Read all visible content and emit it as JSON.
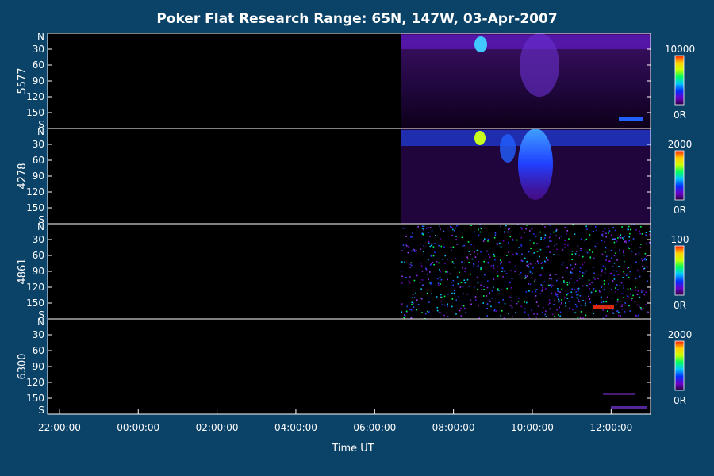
{
  "chart_data": {
    "type": "heatmap",
    "title": "Poker Flat Research Range: 65N, 147W, 03-Apr-2007",
    "xlabel": "Time UT",
    "x_ticks": [
      "22:00:00",
      "00:00:00",
      "02:00:00",
      "04:00:00",
      "06:00:00",
      "08:00:00",
      "10:00:00",
      "12:00:00"
    ],
    "x_range_hours_from_2200": [
      -0.3,
      15.0
    ],
    "y_ticks": [
      "N",
      "30",
      "60",
      "90",
      "120",
      "150",
      "S"
    ],
    "y_range": [
      0,
      180
    ],
    "data_start": "06:40:00",
    "panels": [
      {
        "label": "5577",
        "colorbar_max": "10000",
        "colorbar_min": "0R"
      },
      {
        "label": "4278",
        "colorbar_max": "2000",
        "colorbar_min": "0R"
      },
      {
        "label": "4861",
        "colorbar_max": "100",
        "colorbar_min": "0R"
      },
      {
        "label": "6300",
        "colorbar_max": "2000",
        "colorbar_min": "0R"
      }
    ],
    "colors": {
      "background": "#0b4268",
      "plot_background": "#000000",
      "colorscale": [
        "#2a0040",
        "#6a00c8",
        "#0030ff",
        "#00c8ff",
        "#00ff60",
        "#c8ff00",
        "#ffd000",
        "#ff2000"
      ]
    }
  }
}
